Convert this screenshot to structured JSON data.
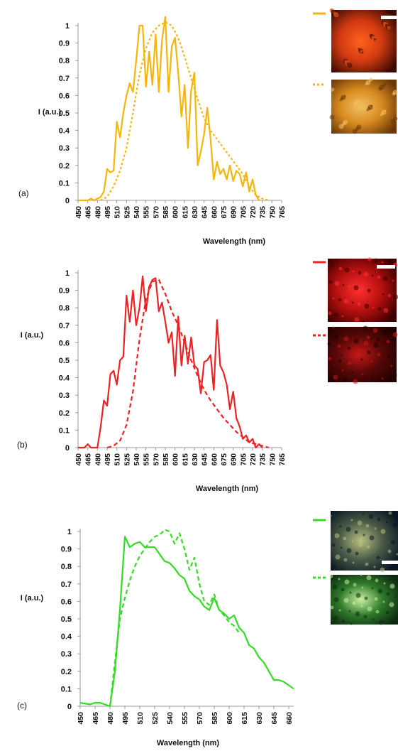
{
  "chart_data": [
    {
      "type": "line",
      "panel_label": "(a)",
      "ylabel": "I (a.u.)",
      "xlabel": "Wavelength (nm)",
      "ylim": [
        0,
        1
      ],
      "yticks": [
        "0",
        "0.1",
        "0.2",
        "0.3",
        "0.4",
        "0.5",
        "0.6",
        "0.7",
        "0.8",
        "0.9",
        "1"
      ],
      "xticks": [
        "450",
        "465",
        "480",
        "495",
        "510",
        "525",
        "540",
        "555",
        "570",
        "585",
        "600",
        "615",
        "630",
        "645",
        "660",
        "675",
        "690",
        "705",
        "720",
        "735",
        "750",
        "765"
      ],
      "xlim": [
        450,
        765
      ],
      "color": "#f5b50a",
      "legend": [
        "solid",
        "dotted"
      ],
      "series": [
        {
          "style": "solid",
          "x": [
            450,
            465,
            470,
            475,
            480,
            485,
            490,
            495,
            500,
            505,
            510,
            515,
            520,
            525,
            530,
            535,
            540,
            545,
            550,
            555,
            560,
            565,
            570,
            575,
            580,
            585,
            590,
            595,
            600,
            605,
            610,
            615,
            620,
            625,
            630,
            635,
            640,
            645,
            650,
            655,
            660,
            665,
            670,
            675,
            680,
            685,
            690,
            695,
            700,
            705,
            710,
            715,
            720,
            725,
            730
          ],
          "y": [
            0,
            0,
            0.01,
            0,
            0.01,
            0.02,
            0.05,
            0.18,
            0.16,
            0.17,
            0.45,
            0.36,
            0.5,
            0.6,
            0.67,
            0.62,
            0.8,
            1.0,
            1.0,
            0.65,
            0.85,
            0.66,
            0.95,
            0.62,
            0.92,
            1.05,
            0.62,
            0.88,
            0.93,
            0.73,
            0.48,
            0.66,
            0.3,
            0.63,
            0.73,
            0.2,
            0.28,
            0.38,
            0.53,
            0.35,
            0.12,
            0.22,
            0.15,
            0.18,
            0.12,
            0.2,
            0.11,
            0.17,
            0.15,
            0.08,
            0.16,
            0.05,
            0.12,
            0.03,
            0.0
          ]
        },
        {
          "style": "dotted",
          "x": [
            485,
            495,
            505,
            515,
            525,
            535,
            545,
            555,
            565,
            575,
            585,
            595,
            605,
            615,
            625,
            635,
            645,
            655,
            665,
            675,
            685,
            695,
            705,
            715,
            725,
            735,
            745
          ],
          "y": [
            0,
            0.02,
            0.08,
            0.17,
            0.3,
            0.5,
            0.72,
            0.87,
            0.96,
            1.0,
            1.02,
            1.0,
            0.93,
            0.82,
            0.7,
            0.58,
            0.47,
            0.4,
            0.35,
            0.3,
            0.25,
            0.2,
            0.15,
            0.08,
            0.03,
            0.01,
            0
          ]
        }
      ],
      "thumbnails": [
        {
          "name": "cell-image-1",
          "bg": [
            "#3a0a04",
            "#d23a10",
            "#ff6020"
          ]
        },
        {
          "name": "cell-image-2",
          "bg": [
            "#6b3808",
            "#d88a20",
            "#f3c060"
          ]
        }
      ]
    },
    {
      "type": "line",
      "panel_label": "(b)",
      "ylabel": "I (a.u.)",
      "xlabel": "Wavelength (nm)",
      "ylim": [
        0,
        1
      ],
      "yticks": [
        "0",
        "0.1",
        "0.2",
        "0.3",
        "0.4",
        "0.5",
        "0.6",
        "0.7",
        "0.8",
        "0.9",
        "1"
      ],
      "xticks": [
        "450",
        "465",
        "480",
        "495",
        "510",
        "525",
        "540",
        "555",
        "570",
        "585",
        "600",
        "615",
        "630",
        "645",
        "660",
        "675",
        "690",
        "705",
        "720",
        "735",
        "750",
        "765"
      ],
      "xlim": [
        450,
        765
      ],
      "color": "#ee2222",
      "legend": [
        "solid",
        "dashed"
      ],
      "series": [
        {
          "style": "solid",
          "x": [
            450,
            460,
            465,
            470,
            480,
            485,
            490,
            495,
            500,
            505,
            510,
            515,
            520,
            525,
            530,
            535,
            540,
            545,
            550,
            555,
            560,
            565,
            570,
            575,
            580,
            585,
            590,
            595,
            600,
            605,
            610,
            615,
            620,
            625,
            630,
            635,
            640,
            645,
            650,
            655,
            660,
            665,
            670,
            675,
            680,
            685,
            690,
            695,
            700,
            705,
            710,
            715,
            720,
            725,
            730,
            735
          ],
          "y": [
            0,
            0,
            0.02,
            0,
            0,
            0.12,
            0.27,
            0.24,
            0.42,
            0.44,
            0.36,
            0.5,
            0.52,
            0.87,
            0.72,
            0.9,
            0.7,
            0.8,
            0.98,
            0.78,
            0.92,
            0.96,
            0.97,
            0.78,
            0.83,
            0.72,
            0.6,
            0.66,
            0.41,
            0.75,
            0.47,
            0.64,
            0.48,
            0.63,
            0.47,
            0.45,
            0.31,
            0.49,
            0.5,
            0.53,
            0.33,
            0.73,
            0.47,
            0.43,
            0.36,
            0.22,
            0.32,
            0.17,
            0.12,
            0.05,
            0.07,
            0.03,
            0.05,
            0,
            0.02,
            0.0
          ]
        },
        {
          "style": "dashed",
          "x": [
            495,
            505,
            515,
            525,
            535,
            545,
            555,
            565,
            575,
            585,
            595,
            605,
            615,
            625,
            635,
            645,
            655,
            665,
            675,
            685,
            695,
            705,
            715,
            725,
            735,
            745
          ],
          "y": [
            0,
            0.01,
            0.04,
            0.13,
            0.32,
            0.62,
            0.85,
            0.95,
            0.96,
            0.88,
            0.78,
            0.7,
            0.6,
            0.5,
            0.41,
            0.33,
            0.27,
            0.22,
            0.17,
            0.13,
            0.09,
            0.06,
            0.03,
            0.02,
            0.01,
            0
          ]
        }
      ],
      "thumbnails": [
        {
          "name": "cell-image-1",
          "bg": [
            "#3a0000",
            "#b81010",
            "#ff3030"
          ]
        },
        {
          "name": "cell-image-2",
          "bg": [
            "#200000",
            "#5a0808",
            "#c81818"
          ]
        }
      ]
    },
    {
      "type": "line",
      "panel_label": "(c)",
      "ylabel": "I (a.u.)",
      "xlabel": "Wavelength (nm)",
      "ylim": [
        0,
        1
      ],
      "yticks": [
        "0",
        "0.1",
        "0.2",
        "0.3",
        "0.4",
        "0.5",
        "0.6",
        "0.7",
        "0.8",
        "0.9",
        "1"
      ],
      "xticks": [
        "450",
        "465",
        "480",
        "495",
        "510",
        "525",
        "540",
        "555",
        "570",
        "585",
        "600",
        "615",
        "630",
        "645",
        "660"
      ],
      "xlim": [
        450,
        665
      ],
      "color": "#33dd22",
      "legend": [
        "solid",
        "dashed"
      ],
      "series": [
        {
          "style": "solid",
          "x": [
            450,
            460,
            465,
            470,
            475,
            480,
            485,
            490,
            495,
            500,
            505,
            510,
            515,
            520,
            525,
            530,
            535,
            540,
            545,
            550,
            555,
            560,
            565,
            570,
            575,
            580,
            585,
            590,
            595,
            600,
            605,
            610,
            615,
            620,
            625,
            630,
            635,
            640,
            645,
            650,
            655,
            660,
            665
          ],
          "y": [
            0.02,
            0.01,
            0.02,
            0.02,
            0.01,
            0.0,
            0.2,
            0.55,
            0.97,
            0.91,
            0.93,
            0.94,
            0.91,
            0.91,
            0.91,
            0.87,
            0.83,
            0.82,
            0.79,
            0.75,
            0.73,
            0.66,
            0.63,
            0.61,
            0.57,
            0.55,
            0.62,
            0.55,
            0.53,
            0.5,
            0.52,
            0.45,
            0.42,
            0.35,
            0.33,
            0.28,
            0.25,
            0.2,
            0.15,
            0.15,
            0.14,
            0.12,
            0.1
          ]
        },
        {
          "style": "dashed",
          "x": [
            480,
            485,
            490,
            495,
            500,
            505,
            510,
            515,
            520,
            525,
            530,
            535,
            540,
            545,
            550,
            555,
            560,
            565,
            570,
            575,
            580,
            585,
            590,
            595,
            600,
            605,
            610
          ],
          "y": [
            0.0,
            0.25,
            0.5,
            0.62,
            0.72,
            0.8,
            0.86,
            0.9,
            0.94,
            0.97,
            0.98,
            1.01,
            1.0,
            0.93,
            0.99,
            0.9,
            0.78,
            0.85,
            0.7,
            0.6,
            0.58,
            0.64,
            0.55,
            0.52,
            0.48,
            0.46,
            0.42
          ]
        }
      ],
      "thumbnails": [
        {
          "name": "cell-image-1",
          "bg": [
            "#0a1622",
            "#4a5a48",
            "#b8c080"
          ]
        },
        {
          "name": "cell-image-2",
          "bg": [
            "#0c2a10",
            "#2e7a2a",
            "#c8f0a0"
          ]
        }
      ]
    }
  ]
}
